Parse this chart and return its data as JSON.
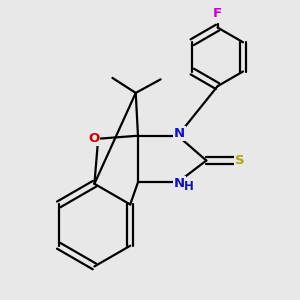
{
  "background_color": "#e8e8e8",
  "figsize": [
    3.0,
    3.0
  ],
  "dpi": 100,
  "bond_lw": 1.6,
  "double_sep": 0.022,
  "atom_labels": {
    "F": {
      "color": "#cc00cc",
      "fs": 9.5
    },
    "O": {
      "color": "#cc0000",
      "fs": 9.5
    },
    "N1": {
      "color": "#1111cc",
      "fs": 9.5
    },
    "N2": {
      "color": "#1111cc",
      "fs": 9.5
    },
    "S": {
      "color": "#aaaa00",
      "fs": 9.5
    }
  },
  "xlim": [
    -0.72,
    1.02
  ],
  "ylim": [
    -0.88,
    1.08
  ]
}
